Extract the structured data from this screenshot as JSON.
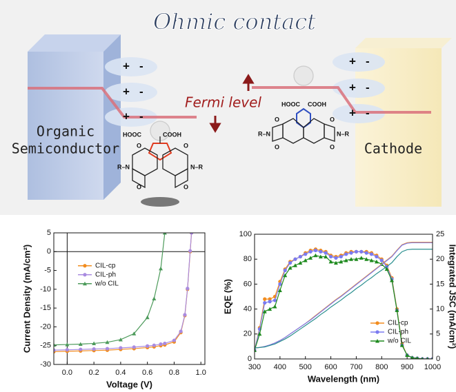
{
  "illustration": {
    "title": "Ohmic contact",
    "fermi_label": "Fermi level",
    "left_label": [
      "Organic",
      "Semiconductor"
    ],
    "right_label": "Cathode",
    "plus": "+",
    "minus": "-",
    "molecule_left": {
      "acid_left": "HOOC",
      "acid_right": "COOH",
      "imide_left": "R–N",
      "imide_right": "N–R",
      "oxygen": "O"
    },
    "molecule_right": {
      "acid_left": "HOOC",
      "acid_right": "COOH",
      "imide_left": "R–N",
      "imide_right": "N–R",
      "oxygen": "O"
    }
  },
  "chart_data": [
    {
      "type": "line",
      "xlabel": "Voltage (V)",
      "ylabel": "Current Density (mA/cm²)",
      "xlim": [
        -0.1,
        1.03
      ],
      "ylim": [
        -30,
        5
      ],
      "xticks": [
        {
          "value": 0,
          "label": "0.0"
        },
        0.2,
        0.4,
        0.6,
        0.8,
        {
          "value": 1,
          "label": "1.0"
        }
      ],
      "yticks": [
        -30,
        -25,
        -20,
        -15,
        -10,
        -5,
        0,
        5
      ],
      "zero_lines": true,
      "legend": "center left",
      "x": [
        -0.1,
        0,
        0.1,
        0.2,
        0.3,
        0.4,
        0.5,
        0.6,
        0.65,
        0.7,
        0.73,
        0.8,
        0.85,
        0.88,
        0.9,
        0.92,
        0.93
      ],
      "series": [
        {
          "name": "CIL-cp",
          "color": "#f28c1e",
          "marker": "circle",
          "values": [
            -26.6,
            -26.5,
            -26.4,
            -26.3,
            -26.2,
            -26.0,
            -25.8,
            -25.5,
            -25.3,
            -25.0,
            -24.8,
            -24.0,
            -21.5,
            -17,
            -10,
            0,
            5
          ]
        },
        {
          "name": "CIL-ph",
          "color": "#a98be0",
          "marker": "circle",
          "values": [
            -26.2,
            -26.1,
            -26.0,
            -25.9,
            -25.8,
            -25.6,
            -25.4,
            -25.1,
            -24.9,
            -24.6,
            -24.4,
            -23.6,
            -21.2,
            -16.8,
            -9.8,
            0.2,
            5
          ]
        },
        {
          "name": "w/o CIL",
          "color": "#4c9a5a",
          "marker": "triangle",
          "values": [
            -24.8,
            -24.7,
            -24.6,
            -24.4,
            -24.1,
            -23.4,
            -21.8,
            -17.5,
            -12.5,
            -4.5,
            5,
            null,
            null,
            null,
            null,
            null,
            null
          ]
        }
      ]
    },
    {
      "type": "line",
      "xlabel": "Wavelength (nm)",
      "ylabel": "EQE (%)",
      "y2label": "Integrated JSC (mA/cm²)",
      "xlim": [
        300,
        1000
      ],
      "ylim": [
        0,
        100
      ],
      "y2lim": [
        0,
        25
      ],
      "xticks": [
        300,
        400,
        500,
        600,
        700,
        800,
        900,
        1000
      ],
      "yticks": [
        0,
        20,
        40,
        60,
        80,
        100
      ],
      "y2ticks": [
        0,
        5,
        10,
        15,
        20,
        25
      ],
      "legend": "lower right",
      "x": [
        300,
        320,
        340,
        360,
        380,
        400,
        420,
        440,
        460,
        480,
        500,
        520,
        540,
        560,
        580,
        600,
        620,
        640,
        660,
        680,
        700,
        720,
        740,
        760,
        780,
        800,
        820,
        840,
        860,
        880,
        900,
        920,
        940,
        960,
        980,
        1000
      ],
      "series": [
        {
          "name": "CIL-cp",
          "color": "#f28c1e",
          "marker": "circle",
          "values": [
            7,
            25,
            48,
            48,
            50,
            62,
            72,
            78,
            80,
            82,
            85,
            87,
            88,
            87,
            86,
            83,
            82,
            83,
            85,
            86,
            86,
            86,
            86,
            85,
            83,
            80,
            75,
            65,
            40,
            12,
            3,
            1,
            0.5,
            0,
            0,
            0
          ]
        },
        {
          "name": "CIL-ph",
          "color": "#7b7bf0",
          "marker": "circle",
          "values": [
            7,
            24,
            45,
            46,
            47,
            60,
            71,
            77,
            80,
            82,
            84,
            86,
            87,
            86,
            85,
            82,
            81,
            82,
            84,
            85,
            86,
            86,
            85,
            84,
            82,
            79,
            74,
            64,
            39,
            11,
            3,
            1,
            0.5,
            0,
            0,
            0
          ]
        },
        {
          "name": "w/o CIL",
          "color": "#1e8a1e",
          "marker": "triangle",
          "values": [
            7,
            20,
            38,
            40,
            42,
            55,
            67,
            73,
            75,
            77,
            79,
            81,
            83,
            82,
            82,
            78,
            77,
            78,
            79,
            80,
            80,
            81,
            80,
            79,
            78,
            76,
            72,
            63,
            39,
            11,
            3,
            1,
            0.5,
            0,
            0,
            0
          ]
        },
        {
          "color": "#f28c1e",
          "axis": "y2",
          "values": [
            2.2,
            2.3,
            2.5,
            2.8,
            3.2,
            3.7,
            4.3,
            5.0,
            5.7,
            6.4,
            7.1,
            7.9,
            8.7,
            9.5,
            10.3,
            11.1,
            11.9,
            12.6,
            13.4,
            14.2,
            15.0,
            15.8,
            16.6,
            17.4,
            18.2,
            19.0,
            19.8,
            20.6,
            21.8,
            22.9,
            23.3,
            23.4,
            23.4,
            23.4,
            23.4,
            23.4
          ]
        },
        {
          "color": "#7b7bf0",
          "axis": "y2",
          "values": [
            2.2,
            2.3,
            2.5,
            2.8,
            3.2,
            3.7,
            4.3,
            5.0,
            5.7,
            6.4,
            7.1,
            7.8,
            8.6,
            9.4,
            10.2,
            11.0,
            11.8,
            12.5,
            13.3,
            14.1,
            14.9,
            15.7,
            16.5,
            17.3,
            18.1,
            18.9,
            19.7,
            20.5,
            21.7,
            22.8,
            23.2,
            23.3,
            23.3,
            23.3,
            23.3,
            23.3
          ]
        },
        {
          "color": "#2a8f8f",
          "axis": "y2",
          "values": [
            2.2,
            2.3,
            2.4,
            2.7,
            3.0,
            3.5,
            4.0,
            4.6,
            5.3,
            6.0,
            6.7,
            7.4,
            8.1,
            8.9,
            9.6,
            10.4,
            11.1,
            11.8,
            12.6,
            13.3,
            14.1,
            14.8,
            15.6,
            16.3,
            17.1,
            17.8,
            18.5,
            19.3,
            20.5,
            21.5,
            21.9,
            22.0,
            22.0,
            22.0,
            22.0,
            22.0
          ]
        }
      ]
    }
  ]
}
